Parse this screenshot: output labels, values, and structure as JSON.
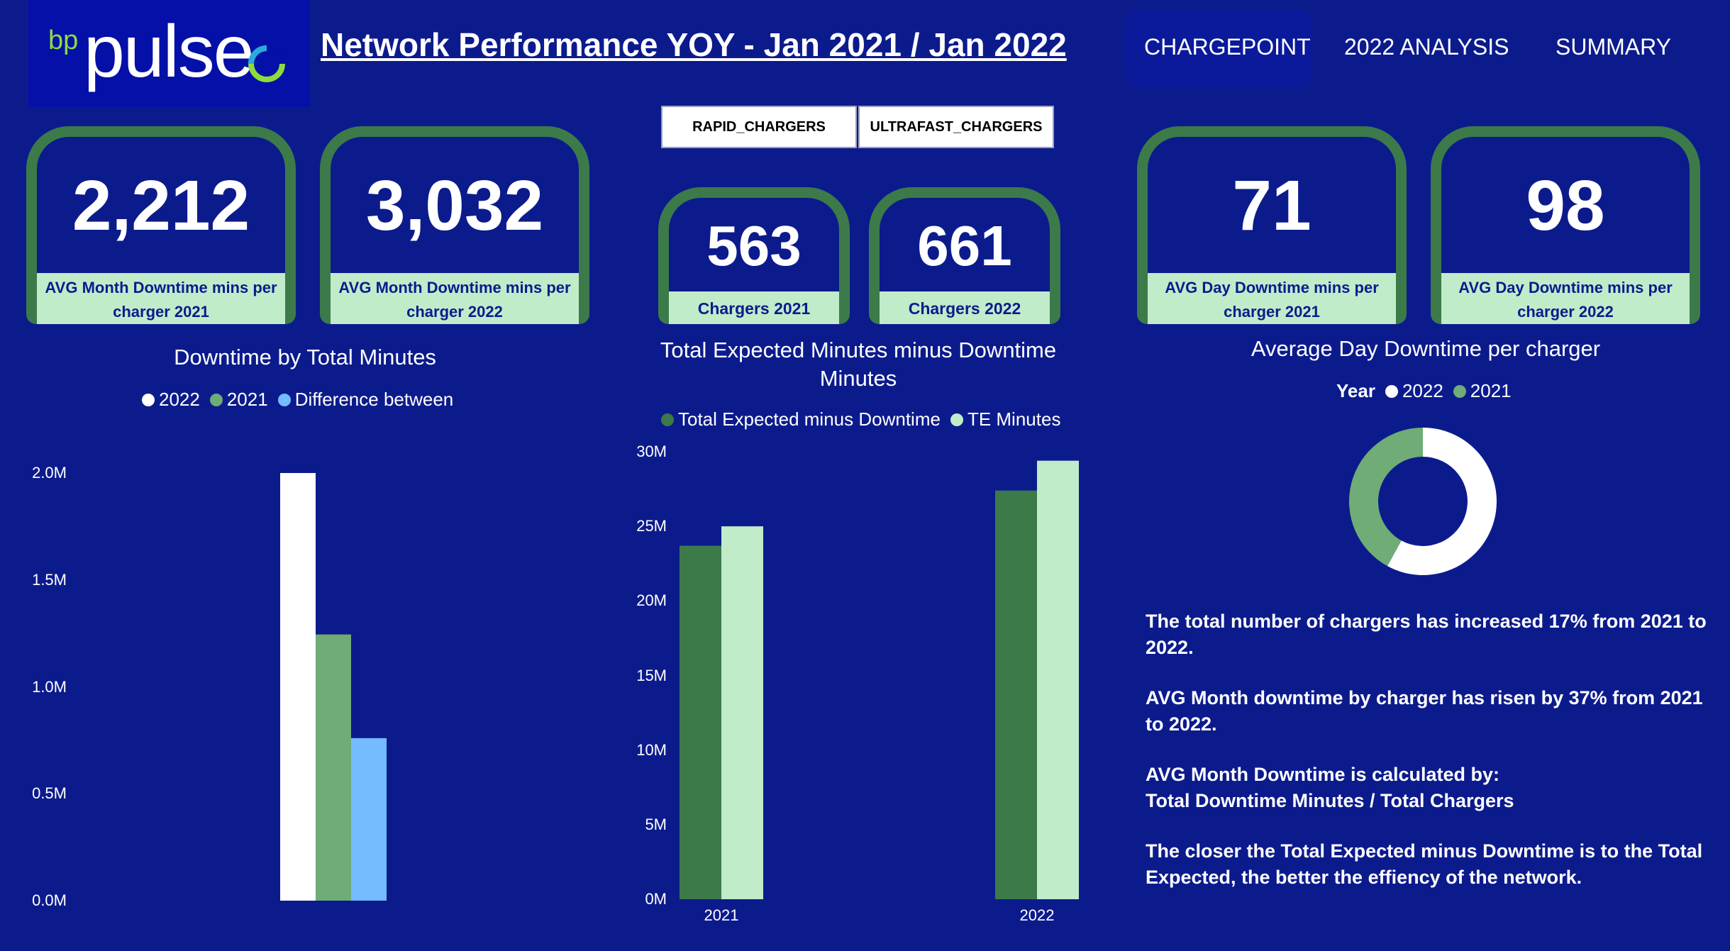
{
  "header": {
    "logo_bp": "bp",
    "logo_pulse": "pulse",
    "title": "Network Performance YOY - Jan 2021 / Jan 2022",
    "nav": [
      "CHARGEPOINT",
      "2022 ANALYSIS",
      "SUMMARY"
    ]
  },
  "slicers": [
    "RAPID_CHARGERS",
    "ULTRAFAST_CHARGERS"
  ],
  "kpis": [
    {
      "value": "2,212",
      "label": "AVG Month Downtime mins per charger 2021"
    },
    {
      "value": "3,032",
      "label": "AVG Month Downtime mins per charger 2022"
    },
    {
      "value": "563",
      "label": "Chargers 2021"
    },
    {
      "value": "661",
      "label": "Chargers 2022"
    },
    {
      "value": "71",
      "label": "AVG Day Downtime mins per charger 2021"
    },
    {
      "value": "98",
      "label": "AVG Day Downtime mins per charger 2022"
    }
  ],
  "colors": {
    "background": "#0c1b8c",
    "dark_green": "#3c7a4a",
    "light_green": "#c0ecca",
    "mid_green": "#6fac76",
    "light_blue": "#74bbff",
    "white": "#ffffff"
  },
  "chart_data": [
    {
      "type": "bar",
      "title": "Downtime by Total Minutes",
      "categories": [
        "2022",
        "2021",
        "Difference between"
      ],
      "values": [
        2000000,
        1245000,
        760000
      ],
      "colors": [
        "#ffffff",
        "#6fac76",
        "#74bbff"
      ],
      "legend": "top",
      "yticks": [
        "0.0M",
        "0.5M",
        "1.0M",
        "1.5M",
        "2.0M"
      ],
      "ylim": [
        0,
        2000000
      ]
    },
    {
      "type": "bar",
      "title": "Total Expected Minutes minus Downtime Minutes",
      "categories": [
        "2021",
        "2022"
      ],
      "series": [
        {
          "name": "Total Expected minus Downtime",
          "color": "#3c7a4a",
          "values": [
            23700000,
            27400000
          ]
        },
        {
          "name": "TE Minutes",
          "color": "#c0ecca",
          "values": [
            25000000,
            29400000
          ]
        }
      ],
      "legend": "top",
      "yticks": [
        "0M",
        "5M",
        "10M",
        "15M",
        "20M",
        "25M",
        "30M"
      ],
      "ylim": [
        0,
        30000000
      ]
    },
    {
      "type": "pie",
      "title": "Average Day Downtime per charger",
      "legend_title": "Year",
      "categories": [
        "2022",
        "2021"
      ],
      "values": [
        98,
        71
      ],
      "colors": [
        "#ffffff",
        "#6fac76"
      ]
    }
  ],
  "insights": [
    "The total number of chargers has increased 17% from 2021 to 2022.",
    "AVG Month downtime by charger has risen by 37% from 2021 to 2022.",
    "AVG Month Downtime is calculated by:",
    "Total Downtime Minutes / Total Chargers",
    "The closer the Total Expected minus Downtime is to the Total Expected, the better the effiency of the network."
  ]
}
